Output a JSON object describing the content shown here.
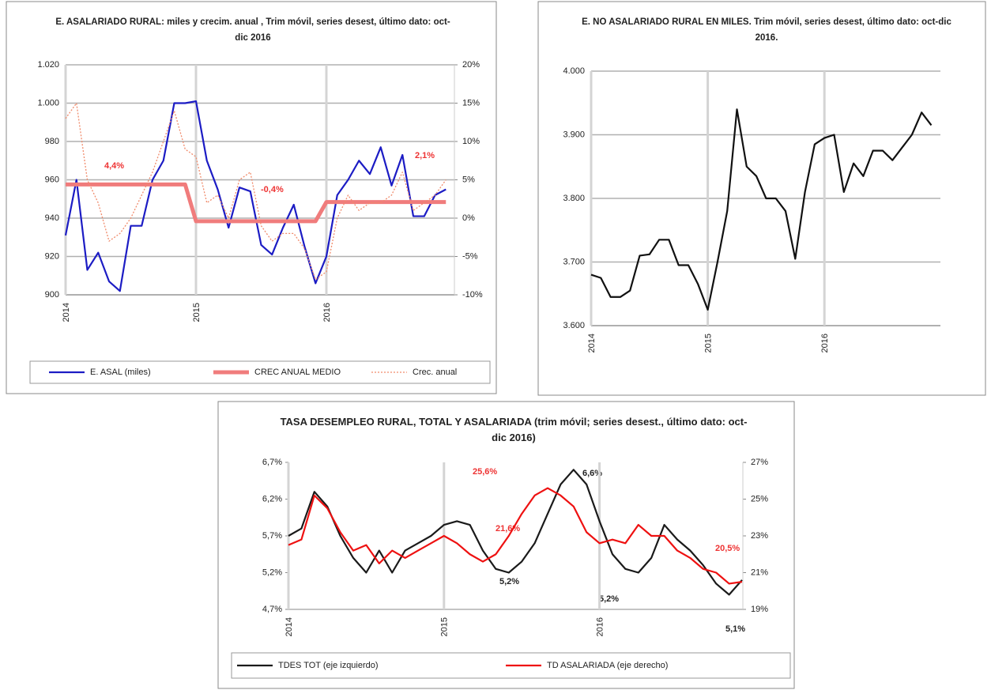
{
  "chart_data": [
    {
      "type": "line",
      "title": "E. ASALARIADO RURAL: miles y crecim. anual , Trim móvil, series desest, último dato: oct-dic 2016",
      "categories": [
        "2014",
        null,
        null,
        null,
        null,
        null,
        null,
        null,
        null,
        null,
        null,
        null,
        "2015",
        null,
        null,
        null,
        null,
        null,
        null,
        null,
        null,
        null,
        null,
        null,
        "2016",
        null,
        null,
        null,
        null,
        null,
        null,
        null,
        null,
        null,
        null,
        null
      ],
      "series": [
        {
          "name": "E. ASAL (miles)",
          "color": "#1c1cc4",
          "style": "solid",
          "values": [
            931,
            960,
            913,
            922,
            907,
            902,
            936,
            936,
            960,
            970,
            1000,
            1000,
            1001,
            970,
            955,
            935,
            956,
            954,
            926,
            921,
            935,
            947,
            925,
            906,
            920,
            952,
            960,
            970,
            963,
            977,
            957,
            973,
            941,
            941,
            952,
            955
          ]
        },
        {
          "name": "CREC ANUAL MEDIO",
          "color": "#f07c7c",
          "style": "thick",
          "axis": "y2",
          "values": [
            4.4,
            4.4,
            4.4,
            4.4,
            4.4,
            4.4,
            4.4,
            4.4,
            4.4,
            4.4,
            4.4,
            4.4,
            -0.4,
            -0.4,
            -0.4,
            -0.4,
            -0.4,
            -0.4,
            -0.4,
            -0.4,
            -0.4,
            -0.4,
            -0.4,
            -0.4,
            2.1,
            2.1,
            2.1,
            2.1,
            2.1,
            2.1,
            2.1,
            2.1,
            2.1,
            2.1,
            2.1,
            2.1
          ]
        },
        {
          "name": "Crec. anual",
          "color": "#f08a6a",
          "style": "dotted",
          "axis": "y2",
          "values": [
            13,
            15,
            5,
            2,
            -3,
            -2,
            0,
            3,
            6,
            10,
            14,
            9,
            8,
            2,
            3,
            0,
            5,
            6,
            -1,
            -3,
            -2,
            -2,
            -4,
            -8,
            -7,
            0,
            3,
            1,
            2,
            2,
            3,
            6,
            1,
            2,
            3,
            5
          ]
        }
      ],
      "ylim": [
        900,
        1020
      ],
      "yticks": [
        900,
        920,
        940,
        960,
        980,
        {
          "value": 1000,
          "label": "1.000"
        },
        {
          "value": 1020,
          "label": "1.020"
        }
      ],
      "y2lim": [
        -10,
        20
      ],
      "y2ticks": [
        {
          "value": -10,
          "label": "-10%"
        },
        {
          "value": -5,
          "label": "-5%"
        },
        {
          "value": 0,
          "label": "0%"
        },
        {
          "value": 5,
          "label": "5%"
        },
        {
          "value": 10,
          "label": "10%"
        },
        {
          "value": 15,
          "label": "15%"
        },
        {
          "value": 20,
          "label": "20%"
        }
      ],
      "grid": true,
      "legend": "bottom",
      "annotations": [
        "4,4%",
        "-0,4%",
        "2,1%"
      ]
    },
    {
      "type": "line",
      "title": "E. NO ASALARIADO RURAL EN MILES. Trim móvil, series desest, último dato: oct-dic 2016.",
      "categories": [
        "2014",
        null,
        null,
        null,
        null,
        null,
        null,
        null,
        null,
        null,
        null,
        null,
        "2015",
        null,
        null,
        null,
        null,
        null,
        null,
        null,
        null,
        null,
        null,
        null,
        "2016",
        null,
        null,
        null,
        null,
        null,
        null,
        null,
        null,
        null,
        null,
        null
      ],
      "values": [
        3680,
        3675,
        3645,
        3645,
        3655,
        3710,
        3712,
        3735,
        3735,
        3695,
        3695,
        3665,
        3625,
        3700,
        3780,
        3940,
        3850,
        3835,
        3800,
        3800,
        3780,
        3705,
        3810,
        3885,
        3895,
        3900,
        3810,
        3855,
        3835,
        3875,
        3875,
        3860,
        3880,
        3900,
        3935,
        3915
      ],
      "color": "#111111",
      "ylim": [
        3600,
        4000
      ],
      "yticks": [
        {
          "value": 3600,
          "label": "3.600"
        },
        {
          "value": 3700,
          "label": "3.700"
        },
        {
          "value": 3800,
          "label": "3.800"
        },
        {
          "value": 3900,
          "label": "3.900"
        },
        {
          "value": 4000,
          "label": "4.000"
        }
      ],
      "grid": true
    },
    {
      "type": "line",
      "title": "TASA DESEMPLEO RURAL, TOTAL Y ASALARIADA (trim móvil; series desest., último dato: oct-dic 2016)",
      "categories": [
        "2014",
        null,
        null,
        null,
        null,
        null,
        null,
        null,
        null,
        null,
        null,
        null,
        "2015",
        null,
        null,
        null,
        null,
        null,
        null,
        null,
        null,
        null,
        null,
        null,
        "2016",
        null,
        null,
        null,
        null,
        null,
        null,
        null,
        null,
        null,
        null,
        null
      ],
      "series": [
        {
          "name": "TDES TOT (eje izquierdo)",
          "color": "#1a1a1a",
          "style": "solid",
          "values": [
            5.7,
            5.8,
            6.3,
            6.1,
            5.7,
            5.4,
            5.2,
            5.5,
            5.2,
            5.5,
            5.6,
            5.7,
            5.85,
            5.9,
            5.85,
            5.5,
            5.25,
            5.2,
            5.35,
            5.6,
            6.0,
            6.4,
            6.6,
            6.4,
            5.9,
            5.45,
            5.25,
            5.2,
            5.4,
            5.85,
            5.65,
            5.5,
            5.3,
            5.05,
            4.9,
            5.1
          ]
        },
        {
          "name": "TD ASALARIADA (eje derecho)",
          "color": "#ee1111",
          "style": "solid",
          "axis": "y2",
          "values": [
            22.5,
            22.8,
            25.2,
            24.5,
            23.2,
            22.2,
            22.5,
            21.5,
            22.2,
            21.8,
            22.2,
            22.6,
            23.0,
            22.6,
            22.0,
            21.6,
            22.0,
            23.0,
            24.2,
            25.2,
            25.6,
            25.2,
            24.6,
            23.2,
            22.6,
            22.8,
            22.6,
            23.6,
            23.0,
            23.0,
            22.2,
            21.8,
            21.2,
            21.0,
            20.4,
            20.5
          ]
        }
      ],
      "ylim": [
        4.7,
        6.7
      ],
      "yticks": [
        {
          "value": 4.7,
          "label": "4,7%"
        },
        {
          "value": 5.2,
          "label": "5,2%"
        },
        {
          "value": 5.7,
          "label": "5,7%"
        },
        {
          "value": 6.2,
          "label": "6,2%"
        },
        {
          "value": 6.7,
          "label": "6,7%"
        }
      ],
      "y2lim": [
        19,
        27
      ],
      "y2ticks": [
        {
          "value": 19,
          "label": "19%"
        },
        {
          "value": 21,
          "label": "21%"
        },
        {
          "value": 23,
          "label": "23%"
        },
        {
          "value": 25,
          "label": "25%"
        },
        {
          "value": 27,
          "label": "27%"
        }
      ],
      "grid": false,
      "legend": "bottom",
      "annotations": [
        "25,6%",
        "6,6%",
        "21,6%",
        "5,2%",
        "5,2%",
        "5,1%",
        "20,5%"
      ]
    }
  ]
}
